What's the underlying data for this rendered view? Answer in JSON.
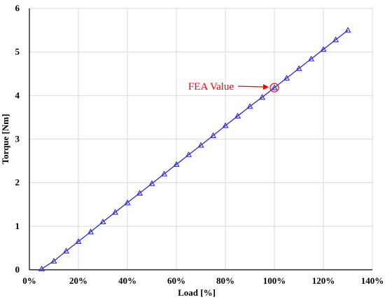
{
  "chart_data": {
    "type": "line",
    "xlabel": "Load [%]",
    "ylabel": "Torque [Nm]",
    "xlim": [
      0,
      140
    ],
    "ylim": [
      0,
      6
    ],
    "x_ticks": [
      0,
      20,
      40,
      60,
      80,
      100,
      120,
      140
    ],
    "x_tick_labels": [
      "0%",
      "20%",
      "40%",
      "60%",
      "80%",
      "100%",
      "120%",
      "140%"
    ],
    "y_ticks": [
      0,
      1,
      2,
      3,
      4,
      5,
      6
    ],
    "y_tick_labels": [
      "0",
      "1",
      "2",
      "3",
      "4",
      "5",
      "6"
    ],
    "grid": true,
    "series": [
      {
        "marker": "triangle",
        "color": "#2b2bd6",
        "x": [
          5,
          10,
          15,
          20,
          25,
          30,
          35,
          40,
          45,
          50,
          55,
          60,
          65,
          70,
          75,
          80,
          85,
          90,
          95,
          100,
          105,
          110,
          115,
          120,
          125,
          130
        ],
        "y": [
          0.02,
          0.2,
          0.43,
          0.65,
          0.87,
          1.1,
          1.32,
          1.54,
          1.76,
          1.98,
          2.2,
          2.42,
          2.64,
          2.86,
          3.08,
          3.31,
          3.53,
          3.75,
          3.96,
          4.18,
          4.4,
          4.62,
          4.84,
          5.06,
          5.28,
          5.5
        ]
      }
    ],
    "annotations": [
      {
        "text": "FEA Value",
        "x": 100,
        "y": 4.18,
        "color": "#ff0000"
      }
    ]
  }
}
